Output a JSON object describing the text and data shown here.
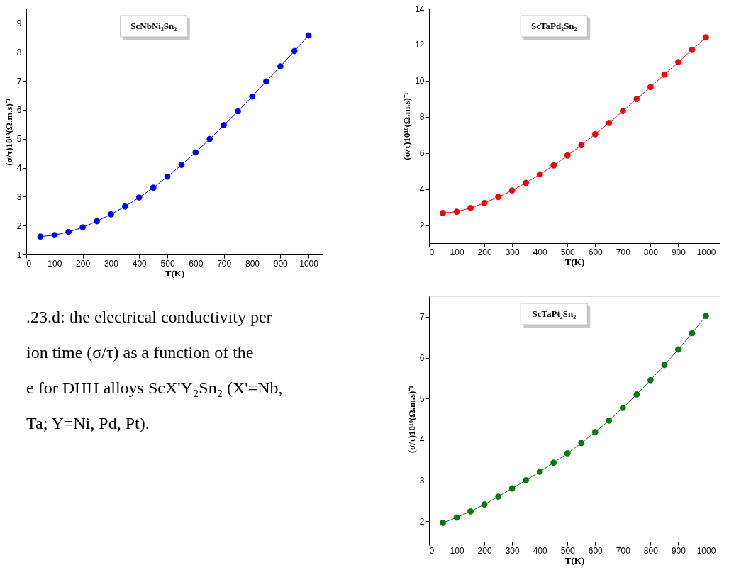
{
  "chart_data": [
    {
      "type": "line",
      "title": "ScNbNi₂Sn₂",
      "xlabel": "T(K)",
      "ylabel": "(σ/τ)10¹⁸(Ω.m.s)⁻¹",
      "marker": "circle",
      "xlim": [
        0,
        1050
      ],
      "ylim": [
        1,
        9.5
      ],
      "xticks": [
        0,
        100,
        200,
        300,
        400,
        500,
        600,
        700,
        800,
        900,
        1000
      ],
      "yticks": [
        1,
        2,
        3,
        4,
        5,
        6,
        7,
        8,
        9
      ],
      "x": [
        50,
        100,
        150,
        200,
        250,
        300,
        350,
        400,
        450,
        500,
        550,
        600,
        650,
        700,
        750,
        800,
        850,
        900,
        950,
        1000
      ],
      "series": [
        {
          "color": "#0000ff",
          "values": [
            1.62,
            1.67,
            1.78,
            1.94,
            2.15,
            2.39,
            2.66,
            2.97,
            3.31,
            3.69,
            4.1,
            4.53,
            4.99,
            5.47,
            5.95,
            6.46,
            6.98,
            7.5,
            8.03,
            8.57
          ]
        }
      ]
    },
    {
      "type": "line",
      "title": "ScTaPd₂Sn₂",
      "xlabel": "T(K)",
      "ylabel": "(σ/τ)10¹⁸(Ω.m.s)⁻¹",
      "marker": "circle",
      "xlim": [
        0,
        1050
      ],
      "ylim": [
        1,
        14
      ],
      "xticks": [
        0,
        100,
        200,
        300,
        400,
        500,
        600,
        700,
        800,
        900,
        1000
      ],
      "yticks": [
        2,
        4,
        6,
        8,
        10,
        12,
        14
      ],
      "x": [
        50,
        100,
        150,
        200,
        250,
        300,
        350,
        400,
        450,
        500,
        550,
        600,
        650,
        700,
        750,
        800,
        850,
        900,
        950,
        1000
      ],
      "series": [
        {
          "color": "#ff0000",
          "values": [
            2.67,
            2.74,
            2.95,
            3.23,
            3.56,
            3.92,
            4.34,
            4.81,
            5.31,
            5.86,
            6.43,
            7.04,
            7.66,
            8.32,
            8.99,
            9.65,
            10.34,
            11.03,
            11.71,
            12.4
          ]
        }
      ]
    },
    {
      "type": "other",
      "annotations": [
        ".23.d: the electrical conductivity per",
        "ion time (σ/τ) as a function of the",
        "e for DHH alloys ScX'Y₂Sn₂ (X'=Nb,",
        "Ta; Y=Ni, Pd, Pt)."
      ]
    },
    {
      "type": "line",
      "title": "ScTaPt₂Sn₂",
      "xlabel": "T(K)",
      "ylabel": "(σ/τ)10¹⁸(Ω.m.s)⁻¹",
      "marker": "circle",
      "xlim": [
        0,
        1050
      ],
      "ylim": [
        1.5,
        7.5
      ],
      "xticks": [
        0,
        100,
        200,
        300,
        400,
        500,
        600,
        700,
        800,
        900,
        1000
      ],
      "yticks": [
        2,
        3,
        4,
        5,
        6,
        7
      ],
      "x": [
        50,
        100,
        150,
        200,
        250,
        300,
        350,
        400,
        450,
        500,
        550,
        600,
        650,
        700,
        750,
        800,
        850,
        900,
        950,
        1000
      ],
      "series": [
        {
          "color": "#008000",
          "values": [
            1.96,
            2.09,
            2.24,
            2.41,
            2.6,
            2.8,
            3.0,
            3.21,
            3.43,
            3.66,
            3.91,
            4.18,
            4.46,
            4.77,
            5.1,
            5.45,
            5.82,
            6.2,
            6.6,
            7.02
          ]
        }
      ]
    }
  ]
}
